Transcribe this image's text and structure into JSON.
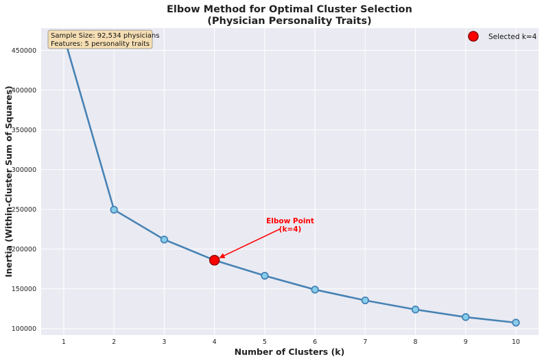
{
  "chart_data": {
    "type": "line",
    "title": "Elbow Method for Optimal Cluster Selection",
    "subtitle": "(Physician Personality Traits)",
    "xlabel": "Number of Clusters (k)",
    "ylabel": "Inertia (Within-Cluster Sum of Squares)",
    "x": [
      1,
      2,
      3,
      4,
      5,
      6,
      7,
      8,
      9,
      10
    ],
    "series": [
      {
        "values": [
          468000,
          249500,
          212000,
          186000,
          166500,
          149000,
          135500,
          124000,
          114500,
          107500
        ]
      }
    ],
    "xlim": [
      0.55,
      10.45
    ],
    "ylim": [
      92000,
      478000
    ],
    "xticks": [
      "1",
      "2",
      "3",
      "4",
      "5",
      "6",
      "7",
      "8",
      "9",
      "10"
    ],
    "yticks": [
      100000,
      150000,
      200000,
      250000,
      300000,
      350000,
      400000,
      450000
    ],
    "ytick_labels": [
      "100000",
      "150000",
      "200000",
      "250000",
      "300000",
      "350000",
      "400000",
      "450000"
    ],
    "grid": true,
    "selected": {
      "x": 4,
      "y": 186000
    },
    "annotation": {
      "lines": [
        "Elbow Point",
        "(k=4)"
      ],
      "x": 5.7,
      "y": 230000
    },
    "legend": {
      "position": "top-right",
      "entries": [
        "Selected k=4"
      ]
    },
    "info_box": [
      "Sample Size: 92,534 physicians",
      "Features: 5 personality traits"
    ],
    "colors": {
      "line": "#4682b4",
      "marker_fill": "#87ceeb",
      "selected": "#ff0000",
      "background": "#eaeaf2",
      "info_box": "#f5deb3"
    }
  }
}
